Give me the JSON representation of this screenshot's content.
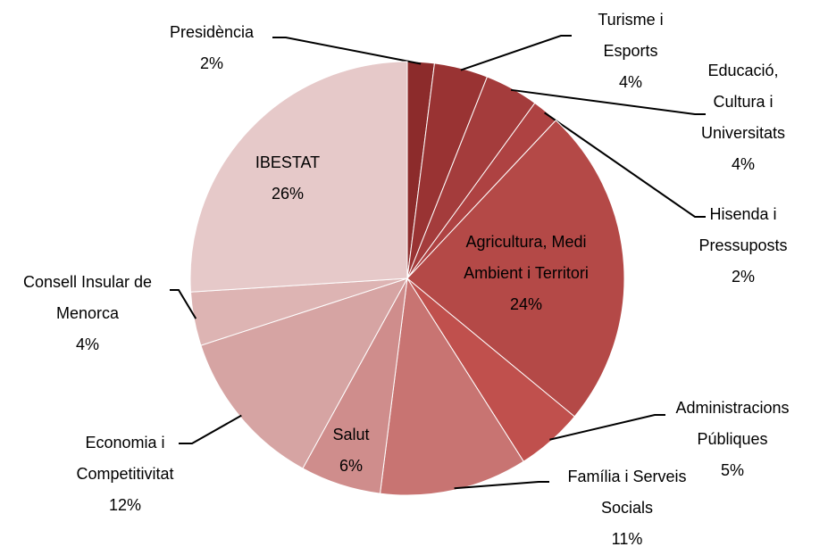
{
  "chart_data": {
    "type": "pie",
    "categories": [
      "Presidència",
      "Turisme i Esports",
      "Educació, Cultura i Universitats",
      "Hisenda i Pressuposts",
      "Agricultura, Medi Ambient i Territori",
      "Administracions Públiques",
      "Família i Serveis Socials",
      "Salut",
      "Economia i Competitivitat",
      "Consell Insular de Menorca",
      "IBESTAT"
    ],
    "values": [
      2,
      4,
      4,
      2,
      24,
      5,
      11,
      6,
      12,
      4,
      26
    ],
    "value_labels": [
      "2%",
      "4%",
      "4%",
      "2%",
      "24%",
      "5%",
      "11%",
      "6%",
      "12%",
      "4%",
      "26%"
    ],
    "colors": [
      "#8c2b2b",
      "#993333",
      "#a43c3c",
      "#ae4242",
      "#b44947",
      "#c0504d",
      "#c87472",
      "#cf8d8c",
      "#d6a4a3",
      "#ddb4b3",
      "#e6c9c9"
    ]
  }
}
